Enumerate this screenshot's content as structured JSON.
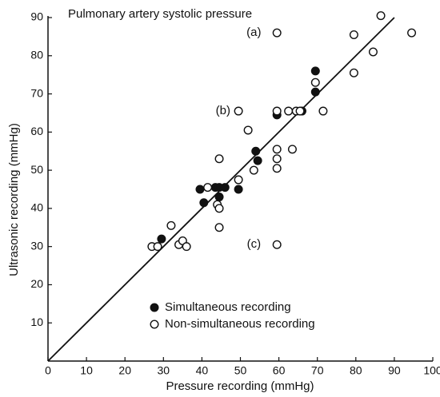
{
  "chart_data": {
    "type": "scatter",
    "title": "Pulmonary artery systolic pressure",
    "x_label": "Pressure recording (mmHg)",
    "y_label": "Ultrasonic recording (mmHg)",
    "xlim": [
      0,
      100
    ],
    "ylim": [
      0,
      90
    ],
    "xticks": [
      0,
      10,
      20,
      30,
      40,
      50,
      60,
      70,
      80,
      90,
      100
    ],
    "yticks": [
      10,
      20,
      30,
      40,
      50,
      60,
      70,
      80,
      90
    ],
    "identity_line": {
      "x": [
        0,
        90
      ],
      "y": [
        0,
        90
      ]
    },
    "annotations": [
      {
        "text": "(a)",
        "x": 53.5,
        "y": 86
      },
      {
        "text": "(b)",
        "x": 45.5,
        "y": 65.5
      },
      {
        "text": "(c)",
        "x": 53.5,
        "y": 30.5
      }
    ],
    "series": [
      {
        "name": "Simultaneous recording",
        "color": "#111111",
        "filled": true,
        "x": [
          29.5,
          39.5,
          40.5,
          43.5,
          44.5,
          44.5,
          46,
          49.5,
          54,
          54.5,
          59.5,
          66,
          69.5,
          69.5
        ],
        "values": [
          32,
          45,
          41.5,
          45.5,
          45.5,
          43,
          45.5,
          45,
          55,
          52.5,
          64.5,
          65.5,
          70.5,
          76
        ]
      },
      {
        "name": "Non-simultaneous recording",
        "color": "#111111",
        "filled": false,
        "x": [
          27,
          28.5,
          32,
          34,
          35,
          36,
          41.5,
          44,
          44.5,
          44.5,
          44.5,
          49.5,
          49.5,
          52,
          53.5,
          59.5,
          59.5,
          59.5,
          59.5,
          59.5,
          59.5,
          62.5,
          63.5,
          64.5,
          65.5,
          69.5,
          71.5,
          79.5,
          79.5,
          84.5,
          86.5,
          94.5
        ],
        "values": [
          30,
          30,
          35.5,
          30.5,
          31.5,
          30,
          45.5,
          41,
          40,
          35,
          53,
          47.5,
          65.5,
          60.5,
          50,
          86,
          55.5,
          53,
          50.5,
          30.5,
          65.5,
          65.5,
          55.5,
          65.5,
          65.5,
          73,
          65.5,
          85.5,
          75.5,
          81,
          90.5,
          86
        ]
      }
    ]
  }
}
